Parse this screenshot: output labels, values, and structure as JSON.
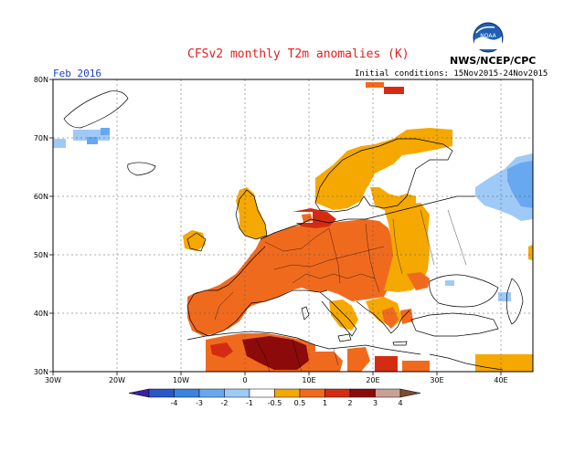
{
  "header": {
    "title": "CFSv2 monthly T2m anomalies (K)",
    "agency": "NWS/NCEP/CPC",
    "logo_text": "NOAA",
    "period": "Feb 2016",
    "initial_conditions": "Initial conditions: 15Nov2015-24Nov2015"
  },
  "map": {
    "lon_range": [
      -30,
      45
    ],
    "lat_range": [
      30,
      80
    ],
    "grid_lines": true,
    "lat_labels": [
      "30N",
      "40N",
      "50N",
      "60N",
      "70N",
      "80N"
    ],
    "lon_labels": [
      "30W",
      "20W",
      "10W",
      "0",
      "10E",
      "20E",
      "30E",
      "40E"
    ]
  },
  "colorbar": {
    "labels": [
      "-4",
      "-3",
      "-2",
      "-1",
      "-0.5",
      "0.5",
      "1",
      "2",
      "3",
      "4"
    ],
    "colors": [
      "#3c1fa8",
      "#2a57c8",
      "#3b83e0",
      "#68a8f0",
      "#9fcaf8",
      "#ffffff",
      "#f5a800",
      "#f06a1e",
      "#d42c12",
      "#8c0a0a",
      "#c9a192",
      "#7a4b2e"
    ]
  }
}
